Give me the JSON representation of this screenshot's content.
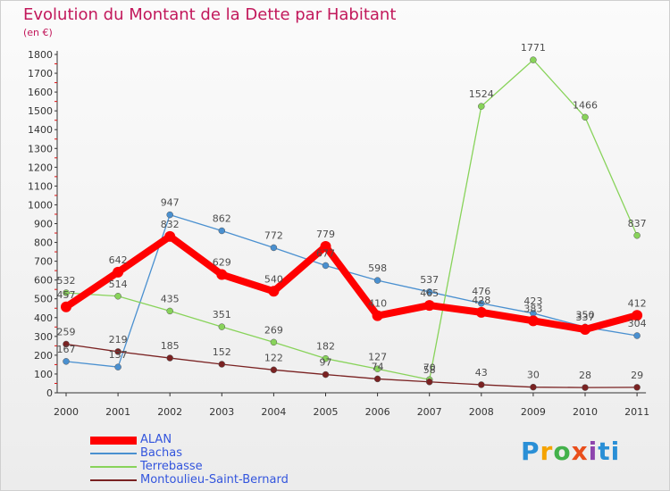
{
  "title": "Evolution du Montant de la Dette par Habitant",
  "subtitle": "(en €)",
  "logo_text": "Proxiti",
  "chart_data": {
    "type": "line",
    "title": "Evolution du Montant de la Dette par Habitant",
    "subtitle": "(en €)",
    "x": [
      "2000",
      "2001",
      "2002",
      "2003",
      "2004",
      "2005",
      "2006",
      "2007",
      "2008",
      "2009",
      "2010",
      "2011"
    ],
    "ylim": [
      0,
      1800
    ],
    "yticks": [
      "0",
      "100",
      "200",
      "300",
      "400",
      "500",
      "600",
      "700",
      "800",
      "900",
      "1000",
      "1100",
      "1200",
      "1300",
      "1400",
      "1500",
      "1600",
      "1700",
      "1800"
    ],
    "grid": false,
    "legend_position": "bottom-left",
    "series": [
      {
        "name": "ALAN",
        "color": "#ff0000",
        "values": [
          457,
          642,
          832,
          629,
          540,
          779,
          410,
          465,
          428,
          383,
          337,
          412
        ]
      },
      {
        "name": "Bachas",
        "color": "#4a90d0",
        "values": [
          167,
          137,
          947,
          862,
          772,
          677,
          598,
          537,
          476,
          423,
          350,
          304
        ]
      },
      {
        "name": "Terrebasse",
        "color": "#88d35a",
        "values": [
          532,
          514,
          435,
          351,
          269,
          182,
          127,
          70,
          1524,
          1771,
          1466,
          837
        ]
      },
      {
        "name": "Montoulieu-Saint-Bernard",
        "color": "#7a2222",
        "values": [
          259,
          219,
          185,
          152,
          122,
          97,
          74,
          58,
          43,
          30,
          28,
          29
        ]
      }
    ]
  }
}
